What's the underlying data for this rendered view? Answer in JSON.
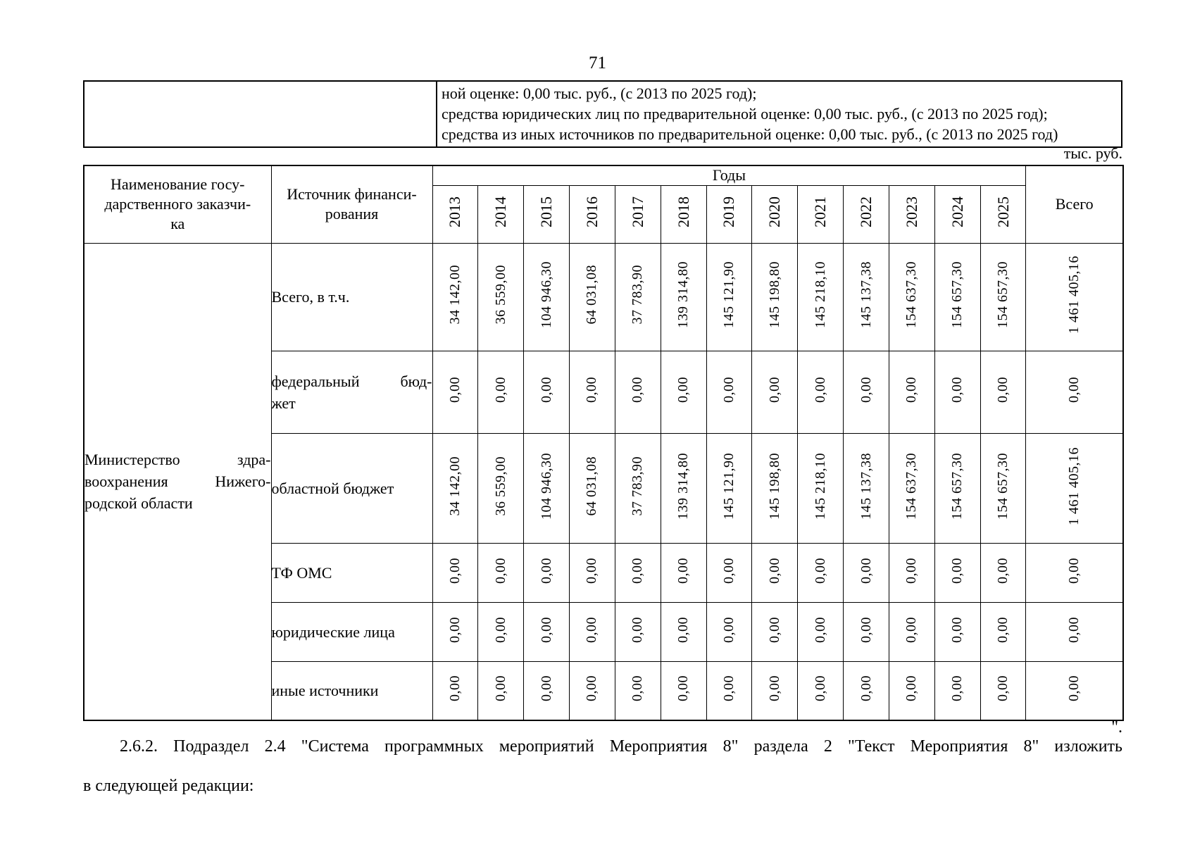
{
  "page": {
    "number": "71"
  },
  "carryover": {
    "lines": [
      "ной оценке: 0,00 тыс. руб., (с 2013 по 2025 год);",
      "средства юридических лиц по предварительной оценке: 0,00 тыс. руб., (с 2013 по 2025 год);",
      "средства из иных источников по предварительной оценке: 0,00 тыс. руб., (с 2013 по 2025 год)"
    ]
  },
  "units_label": "тыс. руб.",
  "table": {
    "header": {
      "customer_lines": [
        "Наименование госу-",
        "дарственного заказчи-",
        "ка"
      ],
      "source_lines": [
        "Источник финанси-",
        "рования"
      ],
      "years_label": "Годы",
      "years": [
        "2013",
        "2014",
        "2015",
        "2016",
        "2017",
        "2018",
        "2019",
        "2020",
        "2021",
        "2022",
        "2023",
        "2024",
        "2025"
      ],
      "total_label": "Всего"
    },
    "ministry_lines": [
      "Министерство здра-",
      "воохранения Нижего-",
      "родской области"
    ],
    "rows": [
      {
        "label_lines": [
          "Всего, в т.ч."
        ],
        "values": [
          "34 142,00",
          "36 559,00",
          "104 946,30",
          "64 031,08",
          "37 783,90",
          "139 314,80",
          "145 121,90",
          "145 198,80",
          "145 218,10",
          "145 137,38",
          "154 637,30",
          "154 657,30",
          "154 657,30"
        ],
        "total": "1 461 405,16"
      },
      {
        "label_lines": [
          "федеральный бюд-",
          "жет"
        ],
        "values": [
          "0,00",
          "0,00",
          "0,00",
          "0,00",
          "0,00",
          "0,00",
          "0,00",
          "0,00",
          "0,00",
          "0,00",
          "0,00",
          "0,00",
          "0,00"
        ],
        "total": "0,00"
      },
      {
        "label_lines": [
          "областной бюджет"
        ],
        "values": [
          "34 142,00",
          "36 559,00",
          "104 946,30",
          "64 031,08",
          "37 783,90",
          "139 314,80",
          "145 121,90",
          "145 198,80",
          "145 218,10",
          "145 137,38",
          "154 637,30",
          "154 657,30",
          "154 657,30"
        ],
        "total": "1 461 405,16"
      },
      {
        "label_lines": [
          "ТФ ОМС"
        ],
        "values": [
          "0,00",
          "0,00",
          "0,00",
          "0,00",
          "0,00",
          "0,00",
          "0,00",
          "0,00",
          "0,00",
          "0,00",
          "0,00",
          "0,00",
          "0,00"
        ],
        "total": "0,00"
      },
      {
        "label_lines": [
          "юридические лица"
        ],
        "values": [
          "0,00",
          "0,00",
          "0,00",
          "0,00",
          "0,00",
          "0,00",
          "0,00",
          "0,00",
          "0,00",
          "0,00",
          "0,00",
          "0,00",
          "0,00"
        ],
        "total": "0,00"
      },
      {
        "label_lines": [
          "иные источники"
        ],
        "values": [
          "0,00",
          "0,00",
          "0,00",
          "0,00",
          "0,00",
          "0,00",
          "0,00",
          "0,00",
          "0,00",
          "0,00",
          "0,00",
          "0,00",
          "0,00"
        ],
        "total": "0,00"
      }
    ]
  },
  "closing_quote": "\".",
  "paragraph": {
    "line1": "2.6.2. Подраздел 2.4 \"Система программных мероприятий Мероприятия 8\" раздела 2 \"Текст Мероприятия 8\" изложить",
    "line2": "в следующей редакции:"
  }
}
